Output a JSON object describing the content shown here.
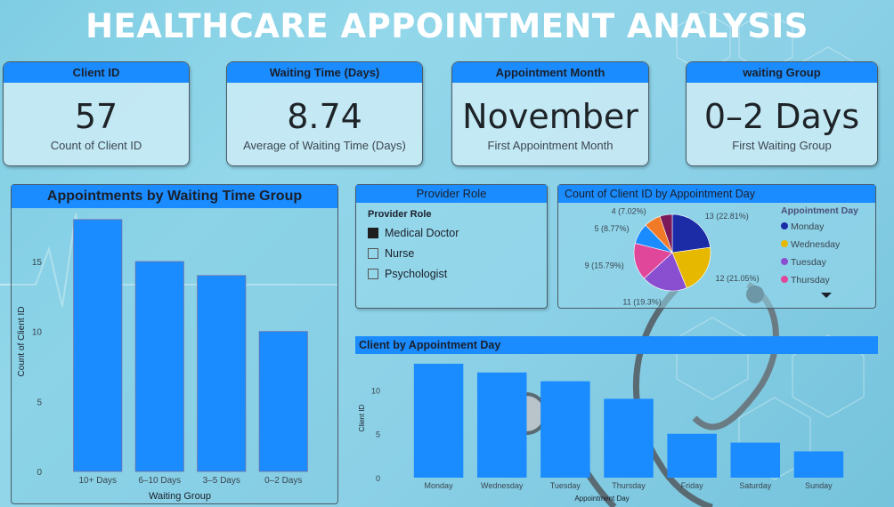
{
  "dashboard": {
    "title": "HEALTHCARE APPOINTMENT ANALYSIS"
  },
  "kpis": [
    {
      "header": "Client ID",
      "value": "57",
      "caption": "Count of Client ID"
    },
    {
      "header": "Waiting Time (Days)",
      "value": "8.74",
      "caption": "Average of Waiting Time (Days)"
    },
    {
      "header": "Appointment Month",
      "value": "November",
      "caption": "First Appointment Month"
    },
    {
      "header": "waiting Group",
      "value": "0–2 Days",
      "caption": "First Waiting Group"
    }
  ],
  "slicer": {
    "header": "Provider Role",
    "title": "Provider Role",
    "options": [
      {
        "label": "Medical Doctor",
        "checked": true
      },
      {
        "label": "Nurse",
        "checked": false
      },
      {
        "label": "Psychologist",
        "checked": false
      }
    ]
  },
  "colors": {
    "accent": "#1a8cff",
    "bar": "#1a8cff",
    "pie": [
      "#1c2ba6",
      "#e6b800",
      "#8a4fd1",
      "#e0469a",
      "#1a8cff",
      "#f07a28",
      "#7a1a5a"
    ]
  },
  "chart_data": [
    {
      "type": "bar",
      "title": "Appointments by Waiting Time Group",
      "xlabel": "Waiting Group",
      "ylabel": "Count of Client ID",
      "categories": [
        "10+ Days",
        "6–10 Days",
        "3–5 Days",
        "0–2 Days"
      ],
      "values": [
        18,
        15,
        14,
        10
      ],
      "ylim": [
        0,
        18.5
      ],
      "yticks": [
        0,
        5,
        10,
        15
      ],
      "grid": false
    },
    {
      "type": "pie",
      "title": "Count of Client ID by Appointment Day",
      "legend_title": "Appointment Day",
      "legend_position": "right",
      "legend_items": [
        "Monday",
        "Wednesday",
        "Tuesday",
        "Thursday"
      ],
      "slices": [
        {
          "name": "Monday",
          "value": 13,
          "label": "13 (22.81%)"
        },
        {
          "name": "Wednesday",
          "value": 12,
          "label": "12 (21.05%)"
        },
        {
          "name": "Tuesday",
          "value": 11,
          "label": "11 (19.3%)"
        },
        {
          "name": "Thursday",
          "value": 9,
          "label": "9 (15.79%)"
        },
        {
          "name": "Friday",
          "value": 5,
          "label": "5 (8.77%)"
        },
        {
          "name": "Saturday",
          "value": 4,
          "label": "4 (7.02%)"
        },
        {
          "name": "Sunday",
          "value": 3,
          "label": ""
        }
      ]
    },
    {
      "type": "bar",
      "title": "Client by Appointment Day",
      "xlabel": "Appointment Day",
      "ylabel": "Client ID",
      "categories": [
        "Monday",
        "Wednesday",
        "Tuesday",
        "Thursday",
        "Friday",
        "Saturday",
        "Sunday"
      ],
      "values": [
        13,
        12,
        11,
        9,
        5,
        4,
        3
      ],
      "ylim": [
        0,
        13.5
      ],
      "yticks": [
        0,
        5,
        10
      ],
      "grid": false
    }
  ]
}
